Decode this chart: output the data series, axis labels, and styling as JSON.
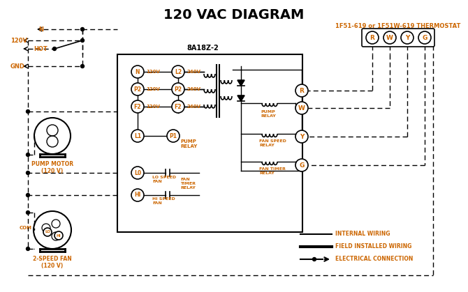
{
  "title": "120 VAC DIAGRAM",
  "bg_color": "#ffffff",
  "orange_color": "#cc6600",
  "black_color": "#000000",
  "thermostat_label": "1F51-619 or 1F51W-619 THERMOSTAT",
  "controller_label": "8A18Z-2",
  "pump_motor_label": "PUMP MOTOR\n(120 V)",
  "fan_label": "2-SPEED FAN\n(120 V)"
}
